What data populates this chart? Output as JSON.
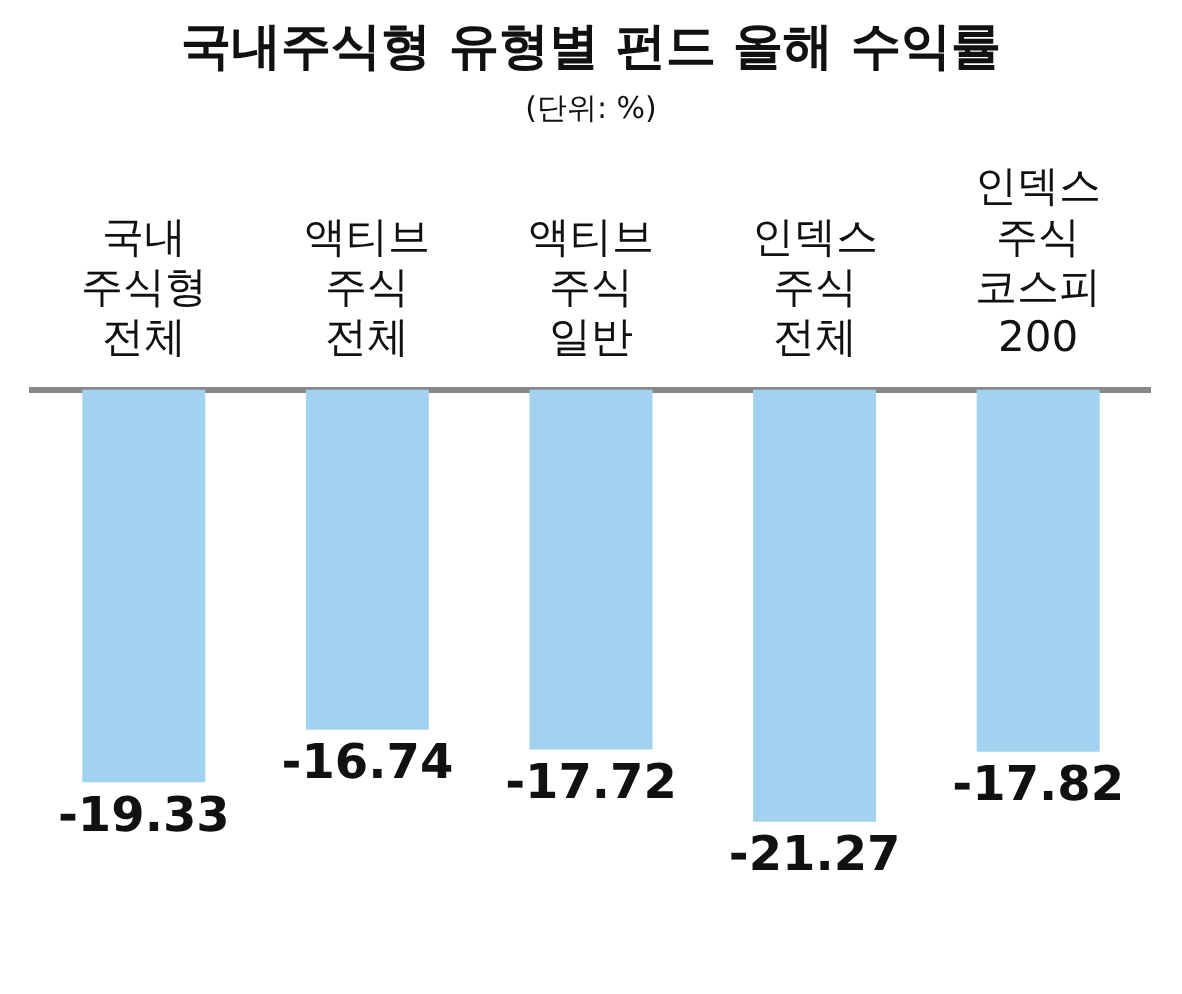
{
  "chart_data": {
    "type": "bar",
    "title": "국내주식형 유형별 펀드 올해 수익률",
    "subtitle": "(단위: %)",
    "categories": [
      "국내 주식형 전체",
      "액티브 주식 전체",
      "액티브 주식 일반",
      "인덱스 주식 전체",
      "인덱스 주식 코스피 200"
    ],
    "values": [
      -19.33,
      -16.74,
      -17.72,
      -21.27,
      -17.82
    ],
    "color": "#a3d2f0",
    "data_labels": true
  }
}
